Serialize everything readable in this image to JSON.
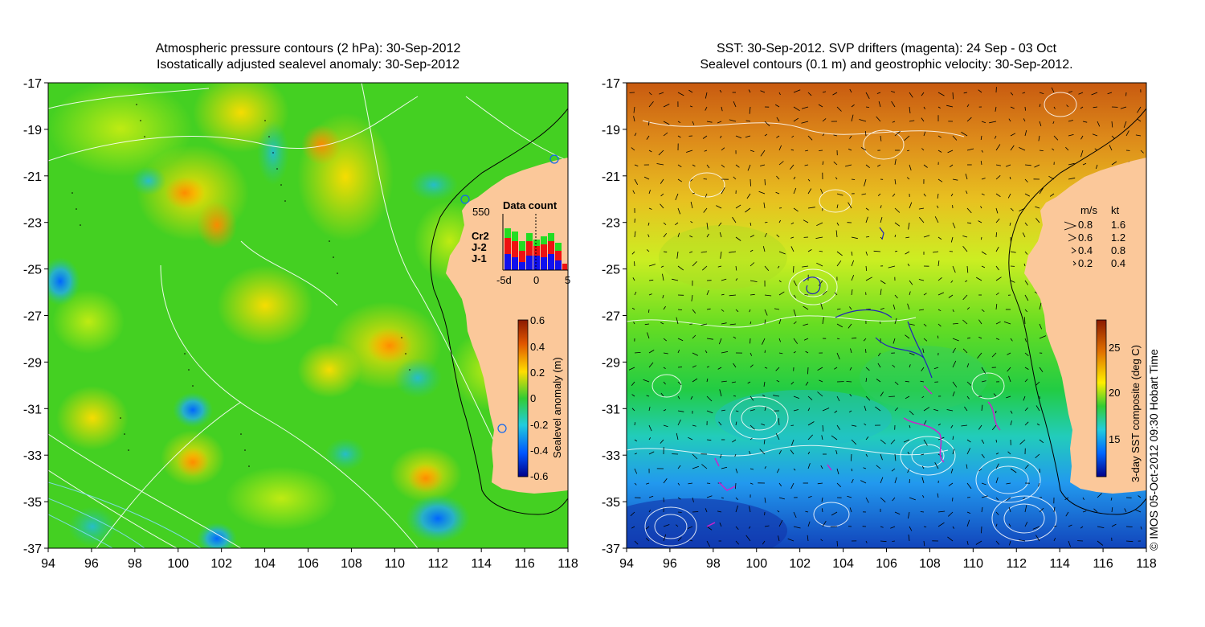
{
  "left_panel": {
    "title_line1": "Atmospheric pressure contours (2 hPa): 30-Sep-2012",
    "title_line2": "Isostatically adjusted sealevel anomaly: 30-Sep-2012",
    "colorbar_label": "Sealevel anomaly (m)",
    "colorbar_ticks": [
      "0.6",
      "0.4",
      "0.2",
      "0",
      "-0.2",
      "-0.4",
      "-0.6"
    ],
    "station_label": "550",
    "data_count": {
      "title": "Data count",
      "legend": [
        {
          "label": "Cr2",
          "color": "#22dd22"
        },
        {
          "label": "J-2",
          "color": "#ee1111"
        },
        {
          "label": "J-1",
          "color": "#1111ee"
        }
      ],
      "x_ticks": [
        "-5d",
        "0",
        "5"
      ]
    }
  },
  "right_panel": {
    "title_line1": "SST: 30-Sep-2012. SVP drifters (magenta): 24 Sep - 03 Oct",
    "title_line2": "Sealevel contours (0.1 m) and geostrophic velocity: 30-Sep-2012.",
    "colorbar_label": "3-day SST composite (deg C)",
    "colorbar_ticks": [
      "25",
      "20",
      "15"
    ],
    "velocity_legend": {
      "header_ms": "m/s",
      "header_kt": "kt",
      "rows": [
        {
          "ms": "0.8",
          "kt": "1.6"
        },
        {
          "ms": "0.6",
          "kt": "1.2"
        },
        {
          "ms": "0.4",
          "kt": "0.8"
        },
        {
          "ms": "0.2",
          "kt": "0.4"
        }
      ]
    }
  },
  "axes": {
    "lat_ticks": [
      "-17",
      "-19",
      "-21",
      "-23",
      "-25",
      "-27",
      "-29",
      "-31",
      "-33",
      "-35",
      "-37"
    ],
    "lon_ticks": [
      "94",
      "96",
      "98",
      "100",
      "102",
      "104",
      "106",
      "108",
      "110",
      "112",
      "114",
      "116",
      "118"
    ]
  },
  "copyright": "© IMOS 05-Oct-2012 09:30 Hobart Time",
  "colors": {
    "land": "#fbc89a",
    "ocean_green": "#33cc33",
    "sst_warm": "#cc6600",
    "sst_cold": "#1144cc"
  }
}
